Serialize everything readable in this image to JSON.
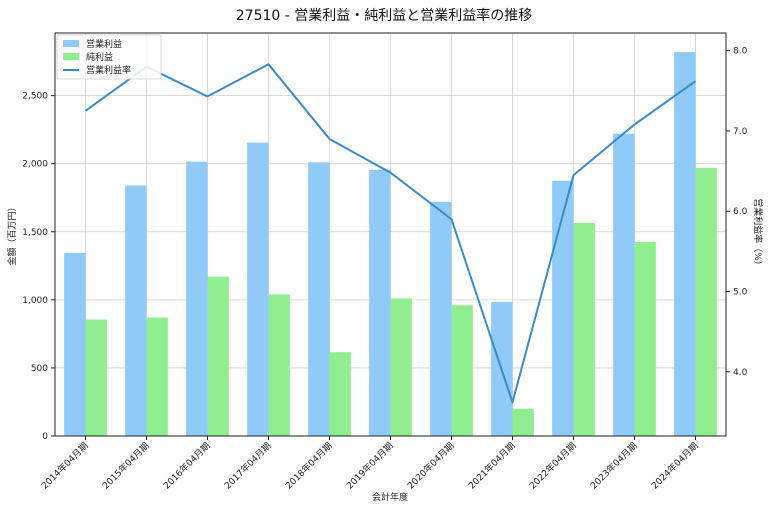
{
  "chart_data": {
    "type": "bar",
    "title": "27510 - 営業利益・純利益と営業利益率の推移",
    "xlabel": "会計年度",
    "ylabel": "金額（百万円）",
    "y2label": "営業利益率（%）",
    "categories": [
      "2014年04月期",
      "2015年04月期",
      "2016年04月期",
      "2017年04月期",
      "2018年04月期",
      "2019年04月期",
      "2020年04月期",
      "2021年04月期",
      "2022年04月期",
      "2023年04月期",
      "2024年04月期"
    ],
    "series": [
      {
        "name": "営業利益",
        "kind": "bar",
        "axis": "left",
        "color": "#90caf9",
        "values": [
          1345,
          1840,
          2015,
          2155,
          2010,
          1955,
          1720,
          985,
          1875,
          2220,
          2820
        ]
      },
      {
        "name": "純利益",
        "kind": "bar",
        "axis": "left",
        "color": "#90ee90",
        "values": [
          855,
          870,
          1170,
          1040,
          615,
          1010,
          960,
          200,
          1565,
          1425,
          1970
        ]
      },
      {
        "name": "営業利益率",
        "kind": "line",
        "axis": "right",
        "color": "#3a8cc4",
        "values": [
          7.25,
          7.8,
          7.43,
          7.83,
          6.9,
          6.48,
          5.9,
          3.62,
          6.45,
          7.08,
          7.62
        ]
      }
    ],
    "ylim": [
      0,
      2960
    ],
    "y2lim": [
      3.2,
      8.22
    ],
    "yticks": [
      0,
      500,
      1000,
      1500,
      2000,
      2500
    ],
    "yticklabels": [
      "0",
      "500",
      "1,000",
      "1,500",
      "2,000",
      "2,500"
    ],
    "y2ticks": [
      4.0,
      5.0,
      6.0,
      7.0,
      8.0
    ],
    "y2ticklabels": [
      "4.0",
      "5.0",
      "6.0",
      "7.0",
      "8.0"
    ],
    "grid": true,
    "legend_position": "top-left"
  }
}
